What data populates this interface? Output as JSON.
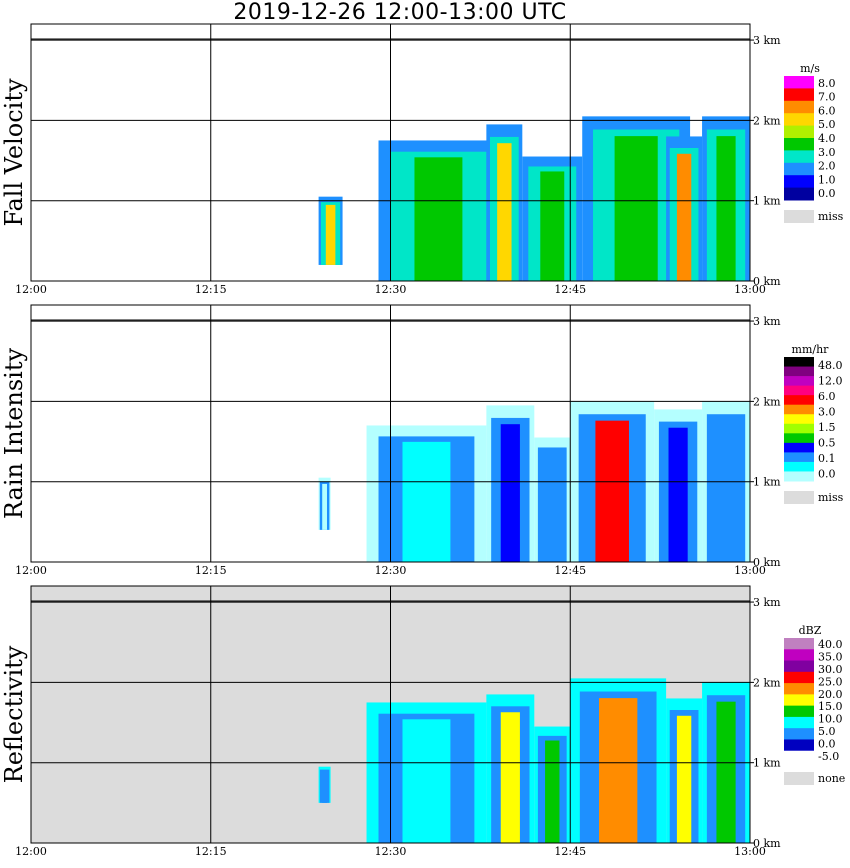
{
  "title": "2019-12-26   12:00-13:00 UTC",
  "colors": {
    "missing_background": "#dcdcdc",
    "grid": "#000000"
  },
  "chart_data": [
    {
      "type": "heatmap",
      "ylabel": "Fall Velocity",
      "x_ticks": [
        "12:00",
        "12:15",
        "12:30",
        "12:45",
        "13:00"
      ],
      "y_ticks": [
        "0 km",
        "1 km",
        "2 km",
        "3 km"
      ],
      "xlim": [
        "12:00",
        "13:00"
      ],
      "ylim_km": [
        0,
        3.2
      ],
      "grid": true,
      "legend": {
        "unit": "m/s",
        "position": "right",
        "labels": [
          "8.0",
          "7.0",
          "6.0",
          "5.0",
          "4.0",
          "3.0",
          "2.0",
          "1.0",
          "0.0"
        ],
        "colors": [
          "#ff00ff",
          "#ff0000",
          "#ff8c00",
          "#ffd700",
          "#b0f000",
          "#00c800",
          "#00e6c8",
          "#1e90ff",
          "#0000ff",
          "#0000a0"
        ],
        "missing_label": "miss"
      },
      "echo": [
        {
          "t0": "12:24",
          "t1": "12:26",
          "base": 0.2,
          "top": 1.05,
          "core": "#ffd700"
        },
        {
          "t0": "12:29",
          "t1": "12:39",
          "base": 0.0,
          "top": 1.75,
          "core": "#00c800"
        },
        {
          "t0": "12:38",
          "t1": "12:41",
          "base": 0.0,
          "top": 1.95,
          "core": "#ffd700"
        },
        {
          "t0": "12:41",
          "t1": "12:46",
          "base": 0.0,
          "top": 1.55,
          "core": "#00c800"
        },
        {
          "t0": "12:46",
          "t1": "12:55",
          "base": 0.0,
          "top": 2.05,
          "core": "#00c800"
        },
        {
          "t0": "12:53",
          "t1": "12:56",
          "base": 0.0,
          "top": 1.8,
          "core": "#ff8c00"
        },
        {
          "t0": "12:56",
          "t1": "13:00",
          "base": 0.0,
          "top": 2.05,
          "core": "#00c800"
        }
      ]
    },
    {
      "type": "heatmap",
      "ylabel": "Rain Intensity",
      "x_ticks": [
        "12:00",
        "12:15",
        "12:30",
        "12:45",
        "13:00"
      ],
      "y_ticks": [
        "0 km",
        "1 km",
        "2 km",
        "3 km"
      ],
      "xlim": [
        "12:00",
        "13:00"
      ],
      "ylim_km": [
        0,
        3.2
      ],
      "grid": true,
      "legend": {
        "unit": "mm/hr",
        "position": "right",
        "labels": [
          "48.0",
          "12.0",
          "6.0",
          "3.0",
          "1.5",
          "0.5",
          "0.1",
          "0.0"
        ],
        "colors": [
          "#000000",
          "#800080",
          "#c000c0",
          "#ff0080",
          "#ff0000",
          "#ff8c00",
          "#ffff00",
          "#a0ff00",
          "#00c800",
          "#0000ff",
          "#1e90ff",
          "#00ffff",
          "#b4ffff"
        ],
        "missing_label": "miss"
      },
      "echo": [
        {
          "t0": "12:24",
          "t1": "12:25",
          "base": 0.4,
          "top": 1.05,
          "core": "#b4ffff"
        },
        {
          "t0": "12:28",
          "t1": "12:38",
          "base": 0.0,
          "top": 1.7,
          "core": "#00ffff"
        },
        {
          "t0": "12:38",
          "t1": "12:42",
          "base": 0.0,
          "top": 1.95,
          "core": "#0000ff"
        },
        {
          "t0": "12:42",
          "t1": "12:45",
          "base": 0.0,
          "top": 1.55,
          "core": "#1e90ff"
        },
        {
          "t0": "12:45",
          "t1": "12:52",
          "base": 0.0,
          "top": 2.0,
          "core": "#ff0000"
        },
        {
          "t0": "12:52",
          "t1": "12:56",
          "base": 0.0,
          "top": 1.9,
          "core": "#0000ff"
        },
        {
          "t0": "12:56",
          "t1": "13:00",
          "base": 0.0,
          "top": 2.0,
          "core": "#1e90ff"
        }
      ]
    },
    {
      "type": "heatmap",
      "ylabel": "Reflectivity",
      "x_ticks": [
        "12:00",
        "12:15",
        "12:30",
        "12:45",
        "13:00"
      ],
      "y_ticks": [
        "0 km",
        "1 km",
        "2 km",
        "3 km"
      ],
      "xlim": [
        "12:00",
        "13:00"
      ],
      "ylim_km": [
        0,
        3.2
      ],
      "grid": true,
      "legend": {
        "unit": "dBZ",
        "position": "right",
        "labels": [
          "40.0",
          "35.0",
          "30.0",
          "25.0",
          "20.0",
          "15.0",
          "10.0",
          "5.0",
          "0.0",
          "-5.0"
        ],
        "colors": [
          "#c080c0",
          "#c000c0",
          "#8000a0",
          "#ff0000",
          "#ff8c00",
          "#ffff00",
          "#00c800",
          "#00ffff",
          "#1e90ff",
          "#0000c0",
          "#ffffff"
        ],
        "missing_label": "none"
      },
      "echo": [
        {
          "t0": "12:24",
          "t1": "12:25",
          "base": 0.5,
          "top": 0.95,
          "core": "#1e90ff"
        },
        {
          "t0": "12:28",
          "t1": "12:38",
          "base": 0.0,
          "top": 1.75,
          "core": "#00ffff"
        },
        {
          "t0": "12:38",
          "t1": "12:42",
          "base": 0.0,
          "top": 1.85,
          "core": "#ffff00"
        },
        {
          "t0": "12:42",
          "t1": "12:45",
          "base": 0.0,
          "top": 1.45,
          "core": "#00c800"
        },
        {
          "t0": "12:45",
          "t1": "12:53",
          "base": 0.0,
          "top": 2.05,
          "core": "#ff8c00"
        },
        {
          "t0": "12:53",
          "t1": "12:56",
          "base": 0.0,
          "top": 1.8,
          "core": "#ffff00"
        },
        {
          "t0": "12:56",
          "t1": "13:00",
          "base": 0.0,
          "top": 2.0,
          "core": "#00c800"
        }
      ]
    }
  ]
}
